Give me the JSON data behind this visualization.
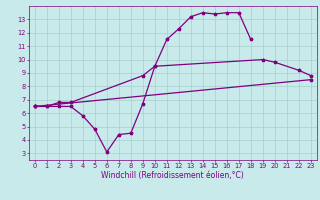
{
  "line1_x": [
    0,
    1,
    2,
    3,
    4,
    5,
    6,
    7,
    8,
    9,
    10,
    11,
    12,
    13,
    14,
    15,
    16,
    17,
    18
  ],
  "line1_y": [
    6.5,
    6.5,
    6.5,
    6.5,
    5.8,
    4.8,
    3.1,
    4.4,
    4.5,
    6.7,
    9.5,
    11.5,
    12.3,
    13.2,
    13.5,
    13.4,
    13.5,
    13.5,
    11.5
  ],
  "line2_x": [
    0,
    1,
    2,
    3,
    9,
    10,
    19,
    20,
    22,
    23
  ],
  "line2_y": [
    6.5,
    6.5,
    6.8,
    6.8,
    8.8,
    9.5,
    10.0,
    9.8,
    9.2,
    8.8
  ],
  "line3_x": [
    0,
    23
  ],
  "line3_y": [
    6.5,
    8.5
  ],
  "color": "#800080",
  "bg_color": "#c8eaea",
  "grid_color": "#a8cece",
  "xlabel": "Windchill (Refroidissement éolien,°C)",
  "ylim": [
    2.5,
    14.0
  ],
  "xlim": [
    -0.5,
    23.5
  ],
  "yticks": [
    3,
    4,
    5,
    6,
    7,
    8,
    9,
    10,
    11,
    12,
    13
  ],
  "xticks": [
    0,
    1,
    2,
    3,
    4,
    5,
    6,
    7,
    8,
    9,
    10,
    11,
    12,
    13,
    14,
    15,
    16,
    17,
    18,
    19,
    20,
    21,
    22,
    23
  ],
  "tick_fontsize": 4.8,
  "xlabel_fontsize": 5.5,
  "linewidth": 0.9,
  "markersize": 2.5
}
